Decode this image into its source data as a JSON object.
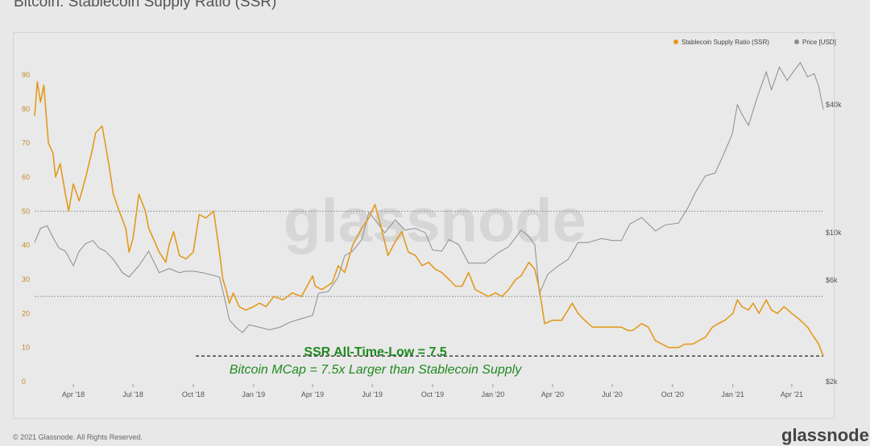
{
  "title": "Bitcoin: Stablecoin Supply Ratio (SSR)",
  "watermark": "glassnode",
  "footer": {
    "copyright": "© 2021 Glassnode. All Rights Reserved.",
    "brand": "glassnode"
  },
  "colors": {
    "ssr": "#e39a1e",
    "price": "#8c8c8c",
    "annotation": "#1f8a1f",
    "background": "#e8e8e8"
  },
  "chart_data": {
    "type": "line",
    "title": "Bitcoin: Stablecoin Supply Ratio (SSR)",
    "legend": {
      "placement": "top-right",
      "entries": [
        "Stablecoin Supply Ratio (SSR)",
        "Price [USD]"
      ]
    },
    "x_ticks": [
      "Apr '18",
      "Jul '18",
      "Oct '18",
      "Jan '19",
      "Apr '19",
      "Jul '19",
      "Oct '19",
      "Jan '20",
      "Apr '20",
      "Jul '20",
      "Oct '20",
      "Jan '21",
      "Apr '21"
    ],
    "y_left": {
      "min": 0,
      "max": 90,
      "ticks": [
        0,
        10,
        20,
        30,
        40,
        50,
        60,
        70,
        80,
        90
      ]
    },
    "y_right": {
      "scale": "log",
      "ticks": [
        {
          "value": 2000,
          "label": "$2k"
        },
        {
          "value": 6000,
          "label": "$6k"
        },
        {
          "value": 10000,
          "label": "$10k"
        },
        {
          "value": 40000,
          "label": "$40k"
        }
      ]
    },
    "reference_lines": [
      {
        "axis": "left",
        "value": 50
      },
      {
        "axis": "left",
        "value": 25
      },
      {
        "axis": "left",
        "value": 7.5,
        "style": "dashed"
      }
    ],
    "annotations": [
      "SSR All-Time-Low = 7.5",
      "Bitcoin MCap = 7.5x Larger than Stablecoin Supply"
    ],
    "series": [
      {
        "name": "Stablecoin Supply Ratio (SSR)",
        "axis": "left",
        "x": [
          "2018-02-01",
          "2018-02-05",
          "2018-02-10",
          "2018-02-15",
          "2018-02-22",
          "2018-03-01",
          "2018-03-05",
          "2018-03-12",
          "2018-03-20",
          "2018-03-25",
          "2018-04-01",
          "2018-04-10",
          "2018-04-20",
          "2018-04-30",
          "2018-05-05",
          "2018-05-15",
          "2018-05-25",
          "2018-06-01",
          "2018-06-10",
          "2018-06-20",
          "2018-06-25",
          "2018-07-01",
          "2018-07-10",
          "2018-07-20",
          "2018-07-25",
          "2018-08-01",
          "2018-08-10",
          "2018-08-20",
          "2018-08-25",
          "2018-09-01",
          "2018-09-10",
          "2018-09-20",
          "2018-10-01",
          "2018-10-10",
          "2018-10-20",
          "2018-11-01",
          "2018-11-10",
          "2018-11-15",
          "2018-11-20",
          "2018-11-25",
          "2018-12-01",
          "2018-12-10",
          "2018-12-20",
          "2019-01-01",
          "2019-01-10",
          "2019-01-20",
          "2019-02-01",
          "2019-02-15",
          "2019-03-01",
          "2019-03-15",
          "2019-04-01",
          "2019-04-05",
          "2019-04-15",
          "2019-05-01",
          "2019-05-10",
          "2019-05-20",
          "2019-06-01",
          "2019-06-15",
          "2019-06-26",
          "2019-07-05",
          "2019-07-15",
          "2019-07-25",
          "2019-08-05",
          "2019-08-15",
          "2019-08-25",
          "2019-09-05",
          "2019-09-15",
          "2019-09-25",
          "2019-10-05",
          "2019-10-15",
          "2019-10-26",
          "2019-11-05",
          "2019-11-15",
          "2019-11-25",
          "2019-12-05",
          "2019-12-15",
          "2019-12-25",
          "2020-01-05",
          "2020-01-15",
          "2020-01-25",
          "2020-02-05",
          "2020-02-13",
          "2020-02-25",
          "2020-03-05",
          "2020-03-12",
          "2020-03-20",
          "2020-04-01",
          "2020-04-15",
          "2020-05-01",
          "2020-05-10",
          "2020-05-20",
          "2020-06-01",
          "2020-06-15",
          "2020-07-01",
          "2020-07-15",
          "2020-07-25",
          "2020-08-01",
          "2020-08-15",
          "2020-08-25",
          "2020-09-05",
          "2020-09-15",
          "2020-09-25",
          "2020-10-10",
          "2020-10-20",
          "2020-11-01",
          "2020-11-10",
          "2020-11-20",
          "2020-12-01",
          "2020-12-10",
          "2020-12-20",
          "2021-01-01",
          "2021-01-08",
          "2021-01-15",
          "2021-01-25",
          "2021-02-01",
          "2021-02-10",
          "2021-02-21",
          "2021-03-01",
          "2021-03-10",
          "2021-03-20",
          "2021-04-01",
          "2021-04-14",
          "2021-04-25",
          "2021-05-05",
          "2021-05-12",
          "2021-05-19"
        ],
        "y": [
          78,
          88,
          82,
          87,
          70,
          67,
          60,
          64,
          55,
          50,
          58,
          53,
          60,
          68,
          73,
          75,
          64,
          55,
          50,
          45,
          38,
          42,
          55,
          50,
          45,
          42,
          38,
          35,
          40,
          44,
          37,
          36,
          38,
          49,
          48,
          50,
          38,
          30,
          27,
          23,
          26,
          22,
          21,
          22,
          23,
          22,
          25,
          24,
          26,
          25,
          31,
          28,
          27,
          29,
          34,
          32,
          40,
          45,
          48,
          52,
          45,
          37,
          41,
          44,
          38,
          37,
          34,
          35,
          33,
          32,
          30,
          28,
          28,
          32,
          27,
          26,
          25,
          26,
          25,
          27,
          30,
          31,
          35,
          33,
          27,
          17,
          18,
          18,
          23,
          20,
          18,
          16,
          16,
          16,
          16,
          15,
          15,
          17,
          16,
          12,
          11,
          10,
          10,
          11,
          11,
          12,
          13,
          16,
          17,
          18,
          20,
          24,
          22,
          21,
          23,
          20,
          24,
          21,
          20,
          22,
          20,
          18,
          16,
          13,
          11,
          7.5
        ]
      },
      {
        "name": "Price [USD]",
        "axis": "right",
        "x": [
          "2018-02-01",
          "2018-02-10",
          "2018-02-20",
          "2018-03-01",
          "2018-03-10",
          "2018-03-20",
          "2018-04-01",
          "2018-04-10",
          "2018-04-20",
          "2018-05-01",
          "2018-05-10",
          "2018-05-20",
          "2018-06-01",
          "2018-06-15",
          "2018-06-25",
          "2018-07-10",
          "2018-07-25",
          "2018-08-10",
          "2018-08-25",
          "2018-09-10",
          "2018-09-20",
          "2018-10-01",
          "2018-10-15",
          "2018-11-01",
          "2018-11-10",
          "2018-11-20",
          "2018-11-25",
          "2018-12-05",
          "2018-12-15",
          "2018-12-25",
          "2019-01-10",
          "2019-01-25",
          "2019-02-10",
          "2019-02-25",
          "2019-03-15",
          "2019-04-01",
          "2019-04-10",
          "2019-04-25",
          "2019-05-10",
          "2019-05-20",
          "2019-06-01",
          "2019-06-15",
          "2019-06-26",
          "2019-07-10",
          "2019-07-20",
          "2019-08-05",
          "2019-08-20",
          "2019-09-05",
          "2019-09-20",
          "2019-10-01",
          "2019-10-15",
          "2019-10-26",
          "2019-11-10",
          "2019-11-25",
          "2019-12-10",
          "2019-12-20",
          "2020-01-10",
          "2020-01-25",
          "2020-02-13",
          "2020-02-25",
          "2020-03-05",
          "2020-03-12",
          "2020-03-25",
          "2020-04-10",
          "2020-04-25",
          "2020-05-10",
          "2020-05-25",
          "2020-06-15",
          "2020-07-01",
          "2020-07-15",
          "2020-07-28",
          "2020-08-15",
          "2020-09-05",
          "2020-09-20",
          "2020-10-10",
          "2020-10-25",
          "2020-11-05",
          "2020-11-20",
          "2020-12-05",
          "2020-12-17",
          "2020-12-31",
          "2021-01-08",
          "2021-01-15",
          "2021-01-25",
          "2021-02-08",
          "2021-02-21",
          "2021-03-01",
          "2021-03-13",
          "2021-03-25",
          "2021-04-05",
          "2021-04-14",
          "2021-04-25",
          "2021-05-05",
          "2021-05-12",
          "2021-05-19"
        ],
        "y": [
          9000,
          10500,
          10800,
          9500,
          8500,
          8200,
          7000,
          8200,
          8900,
          9200,
          8500,
          8200,
          7500,
          6500,
          6200,
          7000,
          8200,
          6500,
          6800,
          6500,
          6600,
          6600,
          6500,
          6300,
          6200,
          4600,
          3900,
          3600,
          3400,
          3700,
          3600,
          3500,
          3600,
          3800,
          3950,
          4100,
          5200,
          5300,
          6200,
          7800,
          8200,
          9300,
          12500,
          11000,
          10000,
          11500,
          10300,
          10500,
          10000,
          8300,
          8200,
          9300,
          8800,
          7200,
          7200,
          7200,
          8100,
          8600,
          10300,
          9600,
          8800,
          5200,
          6400,
          7000,
          7500,
          9000,
          9000,
          9400,
          9200,
          9200,
          11000,
          11800,
          10200,
          10900,
          11100,
          13200,
          15500,
          18500,
          19100,
          23000,
          29000,
          40000,
          36000,
          32000,
          44000,
          57000,
          47000,
          60000,
          52000,
          58000,
          63000,
          54000,
          56000,
          49000,
          38000
        ]
      }
    ]
  }
}
